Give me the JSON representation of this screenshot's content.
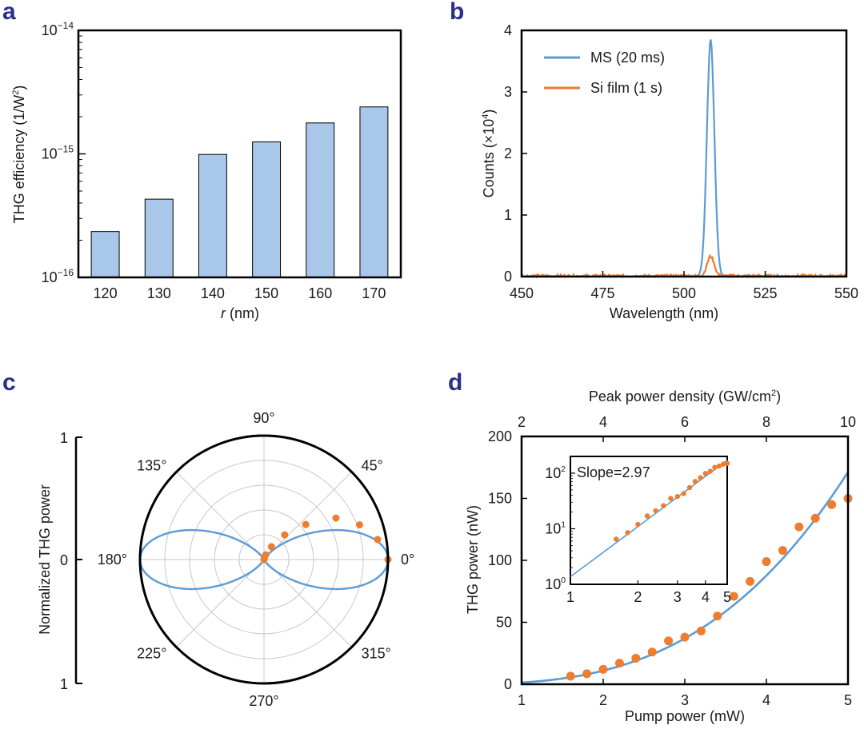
{
  "colors": {
    "bar": "#a9c7e8",
    "blue": "#5b9bd5",
    "orange": "#ed7d31",
    "grid": "#c8c8c8",
    "label": "#2b2f8a"
  },
  "panels": {
    "a": "a",
    "b": "b",
    "c": "c",
    "d": "d"
  },
  "chart_data": [
    {
      "id": "a",
      "type": "bar",
      "title": "",
      "xlabel_italic": "r",
      "xlabel_rest": " (nm)",
      "ylabel": "THG efficiency (1/W",
      "ylabel_sup": "2",
      "ylabel_end": ")",
      "yscale": "log",
      "ylim": [
        1e-16,
        1e-14
      ],
      "yticks": [
        {
          "value": 1e-16,
          "base": "10",
          "exp": "−16"
        },
        {
          "value": 1e-15,
          "base": "10",
          "exp": "−15"
        },
        {
          "value": 1e-14,
          "base": "10",
          "exp": "−14"
        }
      ],
      "categories": [
        "120",
        "130",
        "140",
        "150",
        "160",
        "170"
      ],
      "values": [
        2.35e-16,
        4.3e-16,
        9.9e-16,
        1.25e-15,
        1.78e-15,
        2.4e-15
      ]
    },
    {
      "id": "b",
      "type": "line",
      "xlabel": "Wavelength (nm)",
      "ylabel": "Counts (×10",
      "ylabel_sup": "4",
      "ylabel_end": ")",
      "xlim": [
        450,
        550
      ],
      "ylim": [
        0,
        4
      ],
      "xticks": [
        "450",
        "475",
        "500",
        "525",
        "550"
      ],
      "yticks": [
        "0",
        "1",
        "2",
        "3",
        "4"
      ],
      "series": [
        {
          "name": "MS (20 ms)",
          "color": "#5b9bd5",
          "peak_x": 508.2,
          "peak_y": 3.85,
          "width": 1.15,
          "noise": 0.015
        },
        {
          "name": "Si film (1 s)",
          "color": "#ed7d31",
          "peak_x": 508.2,
          "peak_y": 0.32,
          "width": 1.1,
          "noise": 0.045
        }
      ]
    },
    {
      "id": "c",
      "type": "polar",
      "ylabel": "Normalized THG power",
      "scale_ticks": [
        "1",
        "0",
        "1"
      ],
      "angle_labels": [
        {
          "angle": 0,
          "text": "0°"
        },
        {
          "angle": 45,
          "text": "45°"
        },
        {
          "angle": 90,
          "text": "90°"
        },
        {
          "angle": 135,
          "text": "135°"
        },
        {
          "angle": 180,
          "text": "180°"
        },
        {
          "angle": 225,
          "text": "225°"
        },
        {
          "angle": 270,
          "text": "270°"
        },
        {
          "angle": 315,
          "text": "315°"
        }
      ],
      "rings": [
        0.2,
        0.4,
        0.6,
        0.8
      ],
      "fit": "cos^6",
      "points": [
        {
          "angle_deg": 0,
          "r": 1.0
        },
        {
          "angle_deg": 10,
          "r": 0.93
        },
        {
          "angle_deg": 20,
          "r": 0.82
        },
        {
          "angle_deg": 30,
          "r": 0.67
        },
        {
          "angle_deg": 40,
          "r": 0.44
        },
        {
          "angle_deg": 50,
          "r": 0.26
        },
        {
          "angle_deg": 60,
          "r": 0.12
        },
        {
          "angle_deg": 70,
          "r": 0.04
        },
        {
          "angle_deg": 80,
          "r": 0.01
        },
        {
          "angle_deg": 90,
          "r": 0.0
        }
      ]
    },
    {
      "id": "d",
      "type": "scatter",
      "xlabel": "Pump power (mW)",
      "ylabel": "THG power (nW)",
      "top_xlabel": "Peak power density (GW/cm",
      "top_xlabel_sup": "2",
      "top_xlabel_end": ")",
      "xlim": [
        1,
        5
      ],
      "ylim": [
        0,
        200
      ],
      "xticks": [
        "1",
        "2",
        "3",
        "4",
        "5"
      ],
      "yticks": [
        "0",
        "50",
        "100",
        "150",
        "200"
      ],
      "top_xlim": [
        2,
        10
      ],
      "top_xticks": [
        "2",
        "4",
        "6",
        "8",
        "10"
      ],
      "fit": {
        "type": "power",
        "coef": 1.37,
        "exponent": 3.0
      },
      "points": [
        {
          "x": 1.6,
          "y": 6.5
        },
        {
          "x": 1.8,
          "y": 8.5
        },
        {
          "x": 2.0,
          "y": 12
        },
        {
          "x": 2.2,
          "y": 17
        },
        {
          "x": 2.4,
          "y": 21
        },
        {
          "x": 2.6,
          "y": 26
        },
        {
          "x": 2.8,
          "y": 35
        },
        {
          "x": 3.0,
          "y": 38
        },
        {
          "x": 3.2,
          "y": 43
        },
        {
          "x": 3.4,
          "y": 55
        },
        {
          "x": 3.6,
          "y": 71
        },
        {
          "x": 3.8,
          "y": 83
        },
        {
          "x": 4.0,
          "y": 99
        },
        {
          "x": 4.2,
          "y": 108
        },
        {
          "x": 4.4,
          "y": 127
        },
        {
          "x": 4.6,
          "y": 134
        },
        {
          "x": 4.8,
          "y": 145
        },
        {
          "x": 5.0,
          "y": 150
        }
      ],
      "inset": {
        "annotation": "Slope=2.97",
        "xscale": "log",
        "yscale": "log",
        "xlim": [
          1,
          5
        ],
        "ylim": [
          1,
          200
        ],
        "xticks": [
          "1",
          "2",
          "3",
          "4",
          "5"
        ],
        "yticks": [
          {
            "value": 1,
            "base": "10",
            "exp": "0"
          },
          {
            "value": 10,
            "base": "10",
            "exp": "1"
          },
          {
            "value": 100,
            "base": "10",
            "exp": "2"
          }
        ]
      }
    }
  ]
}
